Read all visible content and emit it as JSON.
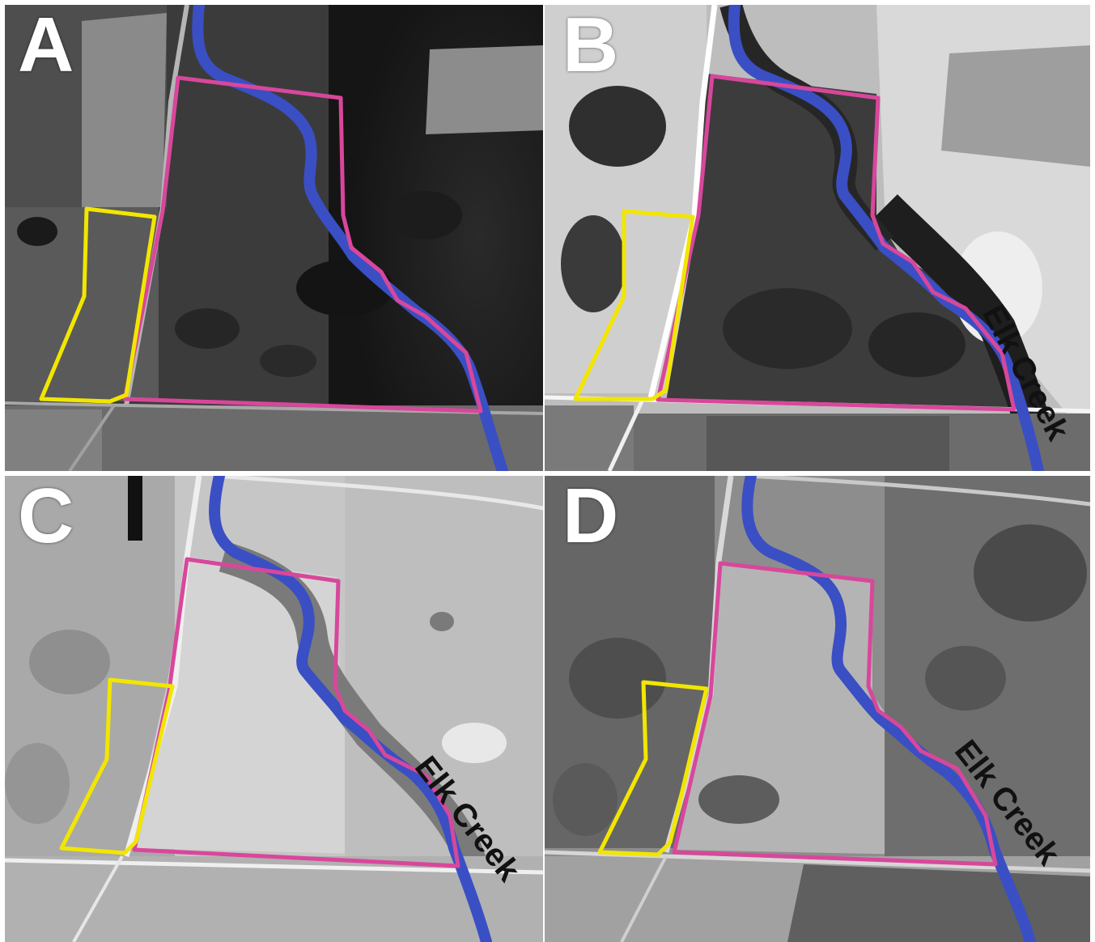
{
  "panels": [
    {
      "letter": "A",
      "tone": "dark",
      "creek_label": ""
    },
    {
      "letter": "B",
      "tone": "contrast",
      "creek_label": "Elk Creek"
    },
    {
      "letter": "C",
      "tone": "light",
      "creek_label": "Elk Creek"
    },
    {
      "letter": "D",
      "tone": "mid",
      "creek_label": "Elk Creek"
    }
  ],
  "colors": {
    "creek": "#3a4fc4",
    "site_boundary": "#d8479b",
    "reference_boundary": "#f2e600",
    "divider": "#ffffff"
  }
}
